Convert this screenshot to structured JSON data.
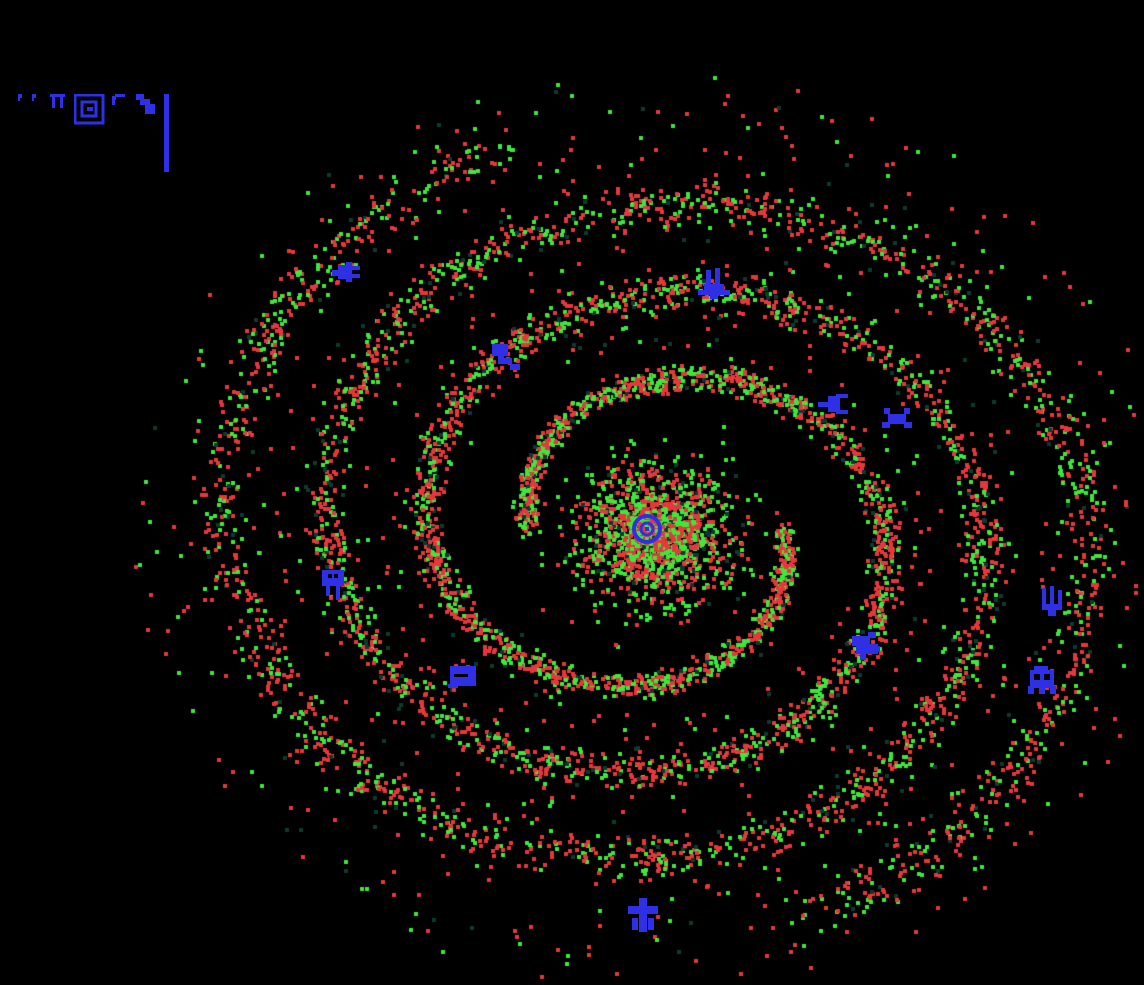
{
  "colors": {
    "background": "#000000",
    "star_red": "#e8373c",
    "star_green": "#3be83b",
    "star_dim": "#0b3b2e",
    "ui_blue": "#2f2fe6"
  },
  "hud": {
    "icons": [
      "quote-icon",
      "quote-icon",
      "pi-icon",
      "spiral-icon",
      "hook-icon",
      "flag-icon"
    ],
    "has_level_bar": true
  },
  "galaxy": {
    "spiral_arms": 2,
    "center_icon": "spiral-icon",
    "outposts": [
      {
        "name": "beetle-icon"
      },
      {
        "name": "tower-icon"
      },
      {
        "name": "antenna-icon"
      },
      {
        "name": "flag-left-icon"
      },
      {
        "name": "crab-icon"
      },
      {
        "name": "gate-icon"
      },
      {
        "name": "fork-icon"
      },
      {
        "name": "tank-icon"
      },
      {
        "name": "box-icon"
      },
      {
        "name": "skull-icon"
      },
      {
        "name": "cross-icon"
      }
    ]
  }
}
